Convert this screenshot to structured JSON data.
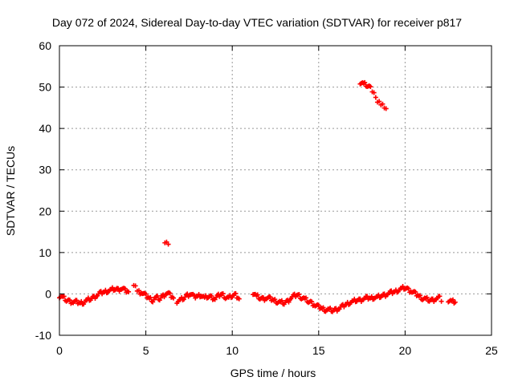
{
  "chart_data": {
    "type": "scatter",
    "title": "Day 072 of 2024, Sidereal Day-to-day VTEC variation (SDTVAR) for receiver p817",
    "xlabel": "GPS time / hours",
    "ylabel": "SDTVAR / TECUs",
    "xlim": [
      0,
      25
    ],
    "ylim": [
      -10,
      60
    ],
    "xticks": [
      0,
      5,
      10,
      15,
      20,
      25
    ],
    "yticks": [
      -10,
      0,
      10,
      20,
      30,
      40,
      50,
      60
    ],
    "grid": true,
    "marker": "plus",
    "series": [
      {
        "name": "SDTVAR",
        "color": "#ff0000",
        "segments": [
          {
            "x": [
              0.0,
              0.2,
              0.4,
              0.6,
              0.8,
              1.0,
              1.2,
              1.4,
              1.6,
              1.8,
              2.0,
              2.2,
              2.4,
              2.6,
              2.8,
              3.0,
              3.2,
              3.4,
              3.6,
              3.8,
              4.0
            ],
            "y": [
              -0.5,
              -0.8,
              -1.5,
              -1.8,
              -2.0,
              -2.0,
              -2.2,
              -2.0,
              -1.5,
              -1.2,
              -0.8,
              -0.3,
              0.2,
              0.5,
              0.8,
              1.0,
              1.2,
              1.0,
              1.3,
              0.8,
              0.5
            ]
          },
          {
            "x": [
              4.3,
              4.4,
              4.5,
              4.6,
              4.8,
              5.0,
              5.2,
              5.4,
              5.6,
              5.8,
              6.0,
              6.2,
              6.4,
              6.6
            ],
            "y": [
              2.5,
              1.8,
              1.0,
              0.5,
              0.2,
              -0.5,
              -1.0,
              -1.5,
              -0.8,
              -1.2,
              -0.5,
              0.2,
              -0.3,
              -1.0
            ]
          },
          {
            "x": [
              6.1,
              6.2,
              6.3
            ],
            "y": [
              12.8,
              12.4,
              12.0
            ]
          },
          {
            "x": [
              6.8,
              7.0,
              7.2,
              7.4,
              7.6,
              7.8,
              8.0,
              8.2,
              8.4,
              8.6,
              8.8,
              9.0,
              9.2,
              9.4,
              9.6,
              9.8,
              10.0,
              10.2,
              10.4
            ],
            "y": [
              -1.8,
              -1.5,
              -1.0,
              -0.3,
              0.0,
              -0.8,
              -0.5,
              -0.2,
              -1.0,
              -0.6,
              -0.8,
              -1.2,
              -0.5,
              0.0,
              -0.7,
              -1.0,
              -0.4,
              -0.2,
              -1.2
            ]
          },
          {
            "x": [
              11.2,
              11.4,
              11.6,
              11.8,
              12.0,
              12.2,
              12.4,
              12.6,
              12.8,
              13.0,
              13.2,
              13.4,
              13.6,
              13.8,
              14.0,
              14.2,
              14.4,
              14.6,
              14.8,
              15.0,
              15.2,
              15.4,
              15.6,
              15.8,
              16.0,
              16.2,
              16.4,
              16.6,
              16.8,
              17.0,
              17.2,
              17.4,
              17.6,
              17.8,
              18.0,
              18.2,
              18.4,
              18.6,
              18.8,
              19.0,
              19.2,
              19.4,
              19.6,
              19.8,
              20.0,
              20.2,
              20.4,
              20.6,
              20.8,
              21.0,
              21.2,
              21.4,
              21.6,
              21.8,
              22.0,
              22.1
            ],
            "y": [
              0.3,
              -0.5,
              -1.0,
              -1.2,
              -1.0,
              -1.2,
              -1.5,
              -1.8,
              -2.0,
              -2.2,
              -1.8,
              -1.0,
              -0.5,
              -0.2,
              -0.8,
              -1.2,
              -1.8,
              -2.2,
              -2.8,
              -3.2,
              -3.5,
              -3.8,
              -3.8,
              -4.0,
              -3.8,
              -3.5,
              -3.0,
              -2.5,
              -2.0,
              -1.8,
              -1.5,
              -1.5,
              -1.2,
              -1.0,
              -1.0,
              -0.8,
              -0.8,
              -0.5,
              -0.3,
              0.0,
              0.3,
              0.5,
              1.0,
              1.3,
              1.5,
              1.0,
              0.5,
              0.0,
              -0.5,
              -1.0,
              -1.2,
              -1.5,
              -1.5,
              -1.2,
              -1.0,
              -1.8
            ]
          },
          {
            "x": [
              22.5,
              22.7,
              22.9
            ],
            "y": [
              -1.5,
              -1.8,
              -2.0
            ]
          },
          {
            "x": [
              17.4,
              17.6,
              17.8,
              18.0,
              18.1,
              18.2,
              18.3,
              18.4,
              18.5,
              18.6,
              18.7,
              18.8,
              18.9
            ],
            "y": [
              51.2,
              50.8,
              50.4,
              49.8,
              49.0,
              48.2,
              47.5,
              46.8,
              46.4,
              46.0,
              45.6,
              45.1,
              44.8
            ]
          }
        ]
      }
    ]
  }
}
